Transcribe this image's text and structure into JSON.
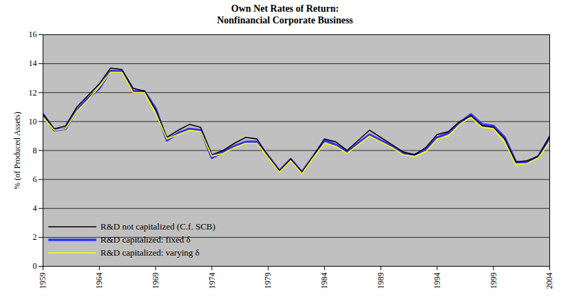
{
  "chart_data": {
    "type": "line",
    "title": "Own Net Rates of Return:",
    "subtitle": "Nonfinancial Corporate Business",
    "ylabel": "% (of Produced Assets)",
    "x": [
      1959,
      1960,
      1961,
      1962,
      1963,
      1964,
      1965,
      1966,
      1967,
      1968,
      1969,
      1970,
      1971,
      1972,
      1973,
      1974,
      1975,
      1976,
      1977,
      1978,
      1979,
      1980,
      1981,
      1982,
      1983,
      1984,
      1985,
      1986,
      1987,
      1988,
      1989,
      1990,
      1991,
      1992,
      1993,
      1994,
      1995,
      1996,
      1997,
      1998,
      1999,
      2000,
      2001,
      2002,
      2003,
      2004
    ],
    "xlim": [
      1959,
      2004
    ],
    "xticks": [
      1959,
      1964,
      1969,
      1974,
      1979,
      1984,
      1989,
      1994,
      1999,
      2004
    ],
    "ylim": [
      0,
      16
    ],
    "yticks": [
      0,
      2,
      4,
      6,
      8,
      10,
      12,
      14,
      16
    ],
    "grid": true,
    "legend": "lower left",
    "series": [
      {
        "name": "R&D not capitalized (C.f. SCB)",
        "color": "#000000",
        "values": [
          10.5,
          9.5,
          9.7,
          11.0,
          11.8,
          12.6,
          13.7,
          13.6,
          12.3,
          12.1,
          10.8,
          8.9,
          9.4,
          9.8,
          9.6,
          7.7,
          8.0,
          8.5,
          8.9,
          8.8,
          7.6,
          6.6,
          7.4,
          6.5,
          7.6,
          8.8,
          8.6,
          8.0,
          8.7,
          9.4,
          8.9,
          8.4,
          7.9,
          7.7,
          8.2,
          9.1,
          9.3,
          10.0,
          10.4,
          9.7,
          9.6,
          8.8,
          7.2,
          7.3,
          7.6,
          9.0
        ]
      },
      {
        "name": "R&D capitalized: fixed δ",
        "color": "#3333ff",
        "values": [
          10.5,
          9.4,
          9.5,
          10.8,
          11.6,
          12.3,
          13.5,
          13.5,
          12.1,
          12.1,
          10.9,
          8.7,
          9.2,
          9.5,
          9.4,
          7.5,
          7.9,
          8.3,
          8.6,
          8.6,
          7.6,
          6.6,
          7.4,
          6.5,
          7.6,
          8.7,
          8.4,
          7.9,
          8.5,
          9.1,
          8.7,
          8.3,
          7.8,
          7.7,
          8.1,
          8.9,
          9.2,
          9.9,
          10.5,
          9.8,
          9.7,
          8.9,
          7.2,
          7.2,
          7.6,
          8.9
        ]
      },
      {
        "name": "R&D capitalized: varying δ",
        "color": "#ffff00",
        "values": [
          10.3,
          9.4,
          9.5,
          10.7,
          11.5,
          12.4,
          13.4,
          13.4,
          12.0,
          12.0,
          10.6,
          8.8,
          9.1,
          9.4,
          9.3,
          7.6,
          7.8,
          8.2,
          8.5,
          8.5,
          7.5,
          6.5,
          7.3,
          6.4,
          7.5,
          8.5,
          8.3,
          7.8,
          8.4,
          9.0,
          8.6,
          8.2,
          7.7,
          7.6,
          7.9,
          8.8,
          9.0,
          9.8,
          10.3,
          9.6,
          9.5,
          8.6,
          7.0,
          7.1,
          7.5,
          8.6
        ]
      }
    ]
  }
}
